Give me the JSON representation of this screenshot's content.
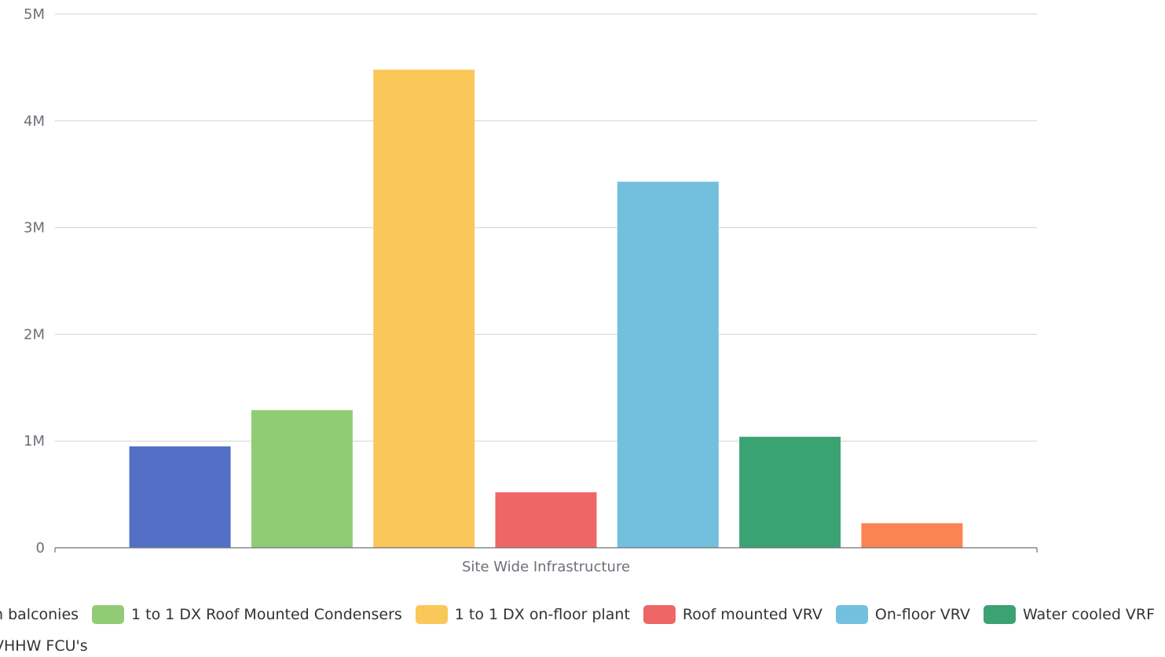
{
  "chart_data": {
    "type": "bar",
    "categories": [
      "Site Wide Infrastructure"
    ],
    "ylim": [
      0,
      5000000
    ],
    "yticks": [
      "0",
      "1M",
      "2M",
      "3M",
      "4M",
      "5M"
    ],
    "grid": true,
    "legend_position": "bottom",
    "series": [
      {
        "name": "...n balconies",
        "color": "#5470c6",
        "values": [
          950000
        ]
      },
      {
        "name": "1 to 1 DX Roof Mounted Condensers",
        "color": "#91cc75",
        "values": [
          1290000
        ]
      },
      {
        "name": "1 to 1 DX on-floor plant",
        "color": "#fac858",
        "values": [
          4480000
        ]
      },
      {
        "name": "Roof mounted VRV",
        "color": "#ee6666",
        "values": [
          520000
        ]
      },
      {
        "name": "On-floor VRV",
        "color": "#73c0de",
        "values": [
          3430000
        ]
      },
      {
        "name": "Water cooled VRF",
        "color": "#3ba272",
        "values": [
          1040000
        ]
      },
      {
        "name": "...HHW FCU's",
        "color": "#fc8452",
        "values": [
          230000
        ]
      }
    ]
  },
  "legend": {
    "row1": [
      {
        "label": "n balconies",
        "color": "#5470c6",
        "show_swatch": false
      },
      {
        "label": "1 to 1 DX Roof Mounted Condensers",
        "color": "#91cc75",
        "show_swatch": true
      },
      {
        "label": "1 to 1 DX on-floor plant",
        "color": "#fac858",
        "show_swatch": true
      },
      {
        "label": "Roof mounted VRV",
        "color": "#ee6666",
        "show_swatch": true
      },
      {
        "label": "On-floor VRV",
        "color": "#73c0de",
        "show_swatch": true
      },
      {
        "label": "Water cooled VRF",
        "color": "#3ba272",
        "show_swatch": true
      }
    ],
    "row2": [
      {
        "label": "VHHW FCU's",
        "color": "#fc8452",
        "show_swatch": false
      }
    ]
  }
}
